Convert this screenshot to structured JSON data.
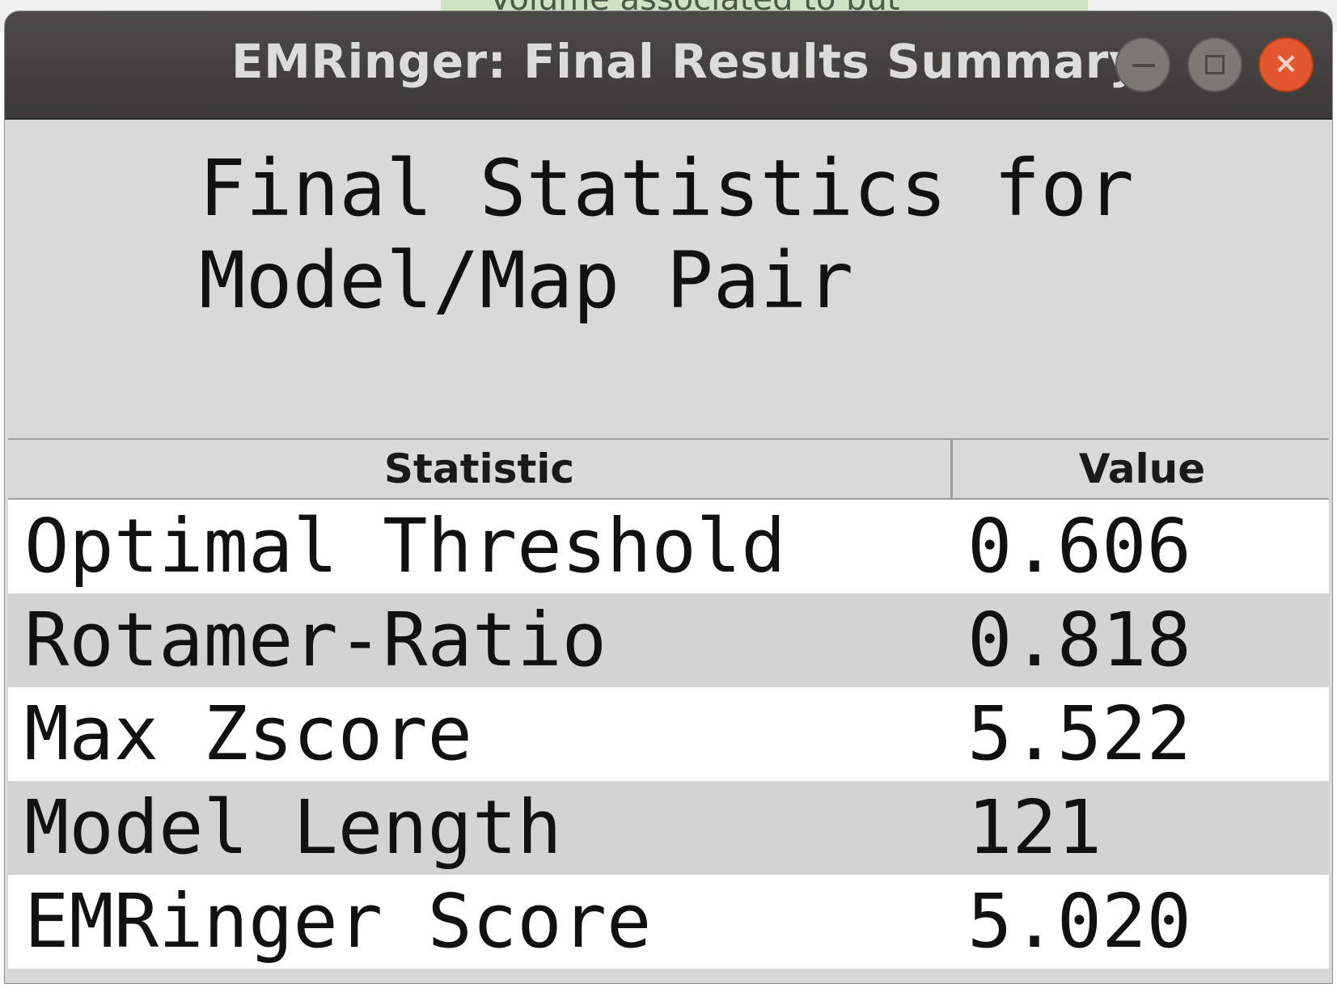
{
  "background_window": {
    "partial_text": "Volume associated to but"
  },
  "window": {
    "title": "EMRinger: Final Results Summary",
    "controls": {
      "minimize_icon": "minimize-icon",
      "maximize_icon": "maximize-icon",
      "close_icon": "close-icon",
      "close_glyph": "×",
      "close_color": "#e4572e"
    }
  },
  "heading": {
    "line1": "Final Statistics for",
    "line2": "Model/Map Pair"
  },
  "table": {
    "columns": [
      "Statistic",
      "Value"
    ],
    "rows": [
      {
        "statistic": "Optimal Threshold",
        "value": "0.606"
      },
      {
        "statistic": "Rotamer-Ratio",
        "value": "0.818"
      },
      {
        "statistic": "Max Zscore",
        "value": "5.522"
      },
      {
        "statistic": "Model Length",
        "value": "121"
      },
      {
        "statistic": "EMRinger Score",
        "value": "5.020"
      }
    ]
  }
}
